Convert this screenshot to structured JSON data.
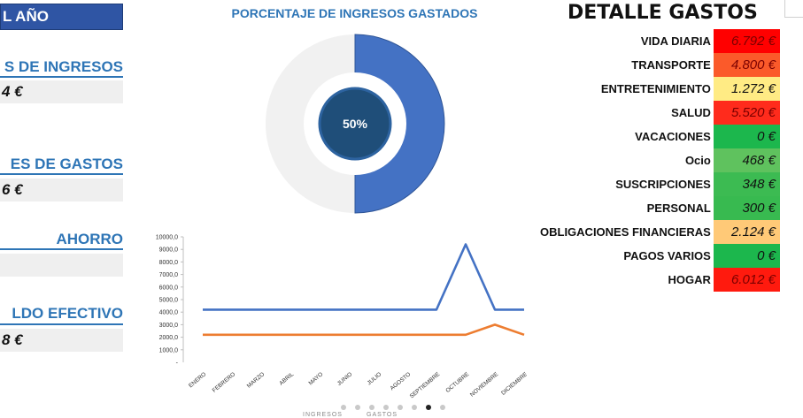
{
  "left_panel": {
    "year_label": "L AÑO",
    "kpis": [
      {
        "title": "S DE INGRESOS",
        "value": "4 €"
      },
      {
        "title": "ES DE GASTOS",
        "value": "6 €"
      },
      {
        "title": "AHORRO",
        "value": ""
      },
      {
        "title": "LDO EFECTIVO",
        "value": "8 €"
      }
    ]
  },
  "donut": {
    "title": "PORCENTAJE DE INGRESOS GASTADOS",
    "label": "50%",
    "percent": 50,
    "colors": {
      "filled": "#4472c4",
      "remaining": "#f1f1f1",
      "center": "#1f4e79"
    }
  },
  "chart_data": {
    "type": "line",
    "categories": [
      "ENERO",
      "FEBRERO",
      "MARZO",
      "ABRIL",
      "MAYO",
      "JUNIO",
      "JULIO",
      "AGOSTO",
      "SEPTIEMBRE",
      "OCTUBRE",
      "NOVIEMBRE",
      "DICIEMBRE"
    ],
    "series": [
      {
        "color": "#4472c4",
        "values": [
          4200,
          4200,
          4200,
          4200,
          4200,
          4200,
          4200,
          4200,
          4200,
          9400,
          4200,
          4200
        ]
      },
      {
        "color": "#ed7d31",
        "values": [
          2200,
          2200,
          2200,
          2200,
          2200,
          2200,
          2200,
          2200,
          2200,
          2200,
          3000,
          2200
        ]
      }
    ],
    "yticks": [
      "1000,0",
      "2000,0",
      "3000,0",
      "4000,0",
      "5000,0",
      "6000,0",
      "7000,0",
      "8000,0",
      "9000,0",
      "10000,0"
    ],
    "ylim": [
      0,
      10000
    ],
    "grid": false,
    "pager": {
      "count": 8,
      "active": 6
    },
    "legend_stub": [
      "INGRESOS",
      "GASTOS"
    ]
  },
  "detalle": {
    "title": "DETALLE GASTOS",
    "rows": [
      {
        "cat": "VIDA DIARIA",
        "val": "6.792 €",
        "color": "#ff0000",
        "text": "red"
      },
      {
        "cat": "TRANSPORTE",
        "val": "4.800 €",
        "color": "#fb5a2a",
        "text": "red"
      },
      {
        "cat": "ENTRETENIMIENTO",
        "val": "1.272 €",
        "color": "#ffeb84",
        "text": "dark"
      },
      {
        "cat": "SALUD",
        "val": "5.520 €",
        "color": "#ff2b1c",
        "text": "red"
      },
      {
        "cat": "VACACIONES",
        "val": "0 €",
        "color": "#1cb74d",
        "text": "dark"
      },
      {
        "cat": "Ocio",
        "val": "468 €",
        "color": "#5fc25e",
        "text": "dark"
      },
      {
        "cat": "SUSCRIPCIONES",
        "val": "348 €",
        "color": "#3cbb52",
        "text": "dark"
      },
      {
        "cat": "PERSONAL",
        "val": "300 €",
        "color": "#38ba50",
        "text": "dark"
      },
      {
        "cat": "OBLIGACIONES FINANCIERAS",
        "val": "2.124 €",
        "color": "#ffc977",
        "text": "dark"
      },
      {
        "cat": "PAGOS VARIOS",
        "val": "0 €",
        "color": "#1cb74d",
        "text": "dark"
      },
      {
        "cat": "HOGAR",
        "val": "6.012 €",
        "color": "#ff1a0e",
        "text": "red"
      }
    ]
  }
}
